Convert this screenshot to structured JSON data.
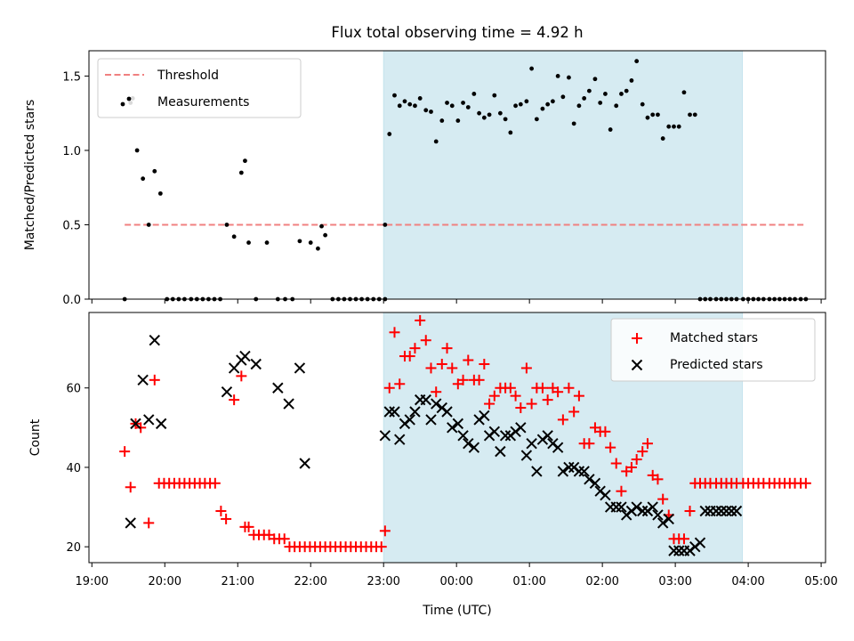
{
  "chart_data": {
    "type": "scatter",
    "title": "Flux total observing time = 4.92 h",
    "xlabel": "Time (UTC)",
    "x_unit": "hours since 19:00 UTC",
    "xlim": [
      -0.04,
      10.06
    ],
    "xticks": [
      0,
      1,
      2,
      3,
      4,
      5,
      6,
      7,
      8,
      9,
      10
    ],
    "xtick_labels": [
      "19:00",
      "20:00",
      "21:00",
      "22:00",
      "23:00",
      "00:00",
      "01:00",
      "02:00",
      "03:00",
      "04:00",
      "05:00"
    ],
    "shaded_region": {
      "x_start": 4.0,
      "x_end": 8.92,
      "color": "#add8e6"
    },
    "top_panel": {
      "ylabel": "Matched/Predicted stars",
      "ylim": [
        0,
        1.67
      ],
      "yticks": [
        0.0,
        0.5,
        1.0,
        1.5
      ],
      "ytick_labels": [
        "0.0",
        "0.5",
        "1.0",
        "1.5"
      ],
      "legend_position": "upper left",
      "threshold": {
        "name": "Threshold",
        "y": 0.5,
        "x_start": 0.45,
        "x_end": 9.8,
        "color": "#f08080"
      },
      "measurements": {
        "name": "Measurements",
        "color": "#000000",
        "x": [
          0.45,
          0.53,
          0.56,
          0.62,
          0.7,
          0.78,
          0.86,
          0.94,
          1.03,
          1.11,
          1.19,
          1.27,
          1.36,
          1.44,
          1.52,
          1.6,
          1.68,
          1.76,
          1.85,
          1.95,
          2.05,
          2.1,
          2.15,
          2.25,
          2.4,
          2.55,
          2.65,
          2.75,
          2.85,
          3.0,
          3.1,
          3.15,
          3.2,
          3.3,
          3.38,
          3.46,
          3.54,
          3.62,
          3.7,
          3.78,
          3.86,
          3.94,
          4.02,
          4.02,
          4.08,
          4.15,
          4.22,
          4.29,
          4.36,
          4.43,
          4.5,
          4.58,
          4.65,
          4.72,
          4.8,
          4.87,
          4.94,
          5.02,
          5.09,
          5.16,
          5.24,
          5.31,
          5.38,
          5.45,
          5.52,
          5.6,
          5.67,
          5.74,
          5.81,
          5.88,
          5.96,
          6.03,
          6.1,
          6.18,
          6.25,
          6.32,
          6.39,
          6.46,
          6.54,
          6.61,
          6.68,
          6.75,
          6.82,
          6.9,
          6.97,
          7.04,
          7.11,
          7.19,
          7.26,
          7.33,
          7.4,
          7.47,
          7.55,
          7.62,
          7.69,
          7.76,
          7.83,
          7.91,
          7.98,
          8.05,
          8.12,
          8.2,
          8.27,
          8.34,
          8.41,
          8.48,
          8.56,
          8.63,
          8.7,
          8.77,
          8.84,
          8.93,
          9.0,
          9.07,
          9.14,
          9.21,
          9.29,
          9.36,
          9.43,
          9.5,
          9.57,
          9.64,
          9.72,
          9.79
        ],
        "y": [
          0.0,
          1.32,
          1.35,
          1.0,
          0.81,
          0.5,
          0.86,
          0.71,
          0.0,
          0.0,
          0.0,
          0.0,
          0.0,
          0.0,
          0.0,
          0.0,
          0.0,
          0.0,
          0.5,
          0.42,
          0.85,
          0.93,
          0.38,
          0.0,
          0.38,
          0.0,
          0.0,
          0.0,
          0.39,
          0.38,
          0.34,
          0.49,
          0.43,
          0.0,
          0.0,
          0.0,
          0.0,
          0.0,
          0.0,
          0.0,
          0.0,
          0.0,
          0.0,
          0.5,
          1.11,
          1.37,
          1.3,
          1.33,
          1.31,
          1.3,
          1.35,
          1.27,
          1.26,
          1.06,
          1.2,
          1.32,
          1.3,
          1.2,
          1.32,
          1.29,
          1.38,
          1.25,
          1.22,
          1.24,
          1.37,
          1.25,
          1.21,
          1.12,
          1.3,
          1.31,
          1.33,
          1.55,
          1.21,
          1.28,
          1.31,
          1.33,
          1.5,
          1.36,
          1.49,
          1.18,
          1.3,
          1.35,
          1.4,
          1.48,
          1.32,
          1.38,
          1.14,
          1.3,
          1.38,
          1.4,
          1.47,
          1.6,
          1.31,
          1.22,
          1.24,
          1.24,
          1.08,
          1.16,
          1.16,
          1.16,
          1.39,
          1.24,
          1.24,
          0.0,
          0.0,
          0.0,
          0.0,
          0.0,
          0.0,
          0.0,
          0.0,
          0.0,
          0.0,
          0.0,
          0.0,
          0.0,
          0.0,
          0.0,
          0.0,
          0.0,
          0.0,
          0.0,
          0.0,
          0.0
        ]
      }
    },
    "bottom_panel": {
      "ylabel": "Count",
      "ylim": [
        16,
        79
      ],
      "yticks": [
        20,
        40,
        60
      ],
      "ytick_labels": [
        "20",
        "40",
        "60"
      ],
      "legend_position": "upper right",
      "series": [
        {
          "name": "Matched stars",
          "marker": "+",
          "color": "#ff0000",
          "x": [
            0.45,
            0.53,
            0.6,
            0.67,
            0.78,
            0.86,
            0.92,
            0.99,
            1.06,
            1.13,
            1.2,
            1.27,
            1.34,
            1.41,
            1.48,
            1.55,
            1.62,
            1.69,
            1.77,
            1.84,
            1.95,
            2.05,
            2.1,
            2.15,
            2.22,
            2.29,
            2.36,
            2.43,
            2.5,
            2.57,
            2.64,
            2.71,
            2.78,
            2.85,
            2.92,
            2.99,
            3.06,
            3.13,
            3.2,
            3.27,
            3.34,
            3.41,
            3.48,
            3.55,
            3.62,
            3.69,
            3.76,
            3.83,
            3.9,
            3.97,
            4.02,
            4.08,
            4.15,
            4.22,
            4.29,
            4.36,
            4.43,
            4.5,
            4.58,
            4.65,
            4.72,
            4.8,
            4.87,
            4.94,
            5.02,
            5.09,
            5.16,
            5.24,
            5.31,
            5.38,
            5.45,
            5.52,
            5.6,
            5.67,
            5.74,
            5.81,
            5.88,
            5.96,
            6.03,
            6.1,
            6.18,
            6.25,
            6.32,
            6.39,
            6.46,
            6.54,
            6.61,
            6.68,
            6.75,
            6.82,
            6.9,
            6.97,
            7.04,
            7.11,
            7.19,
            7.26,
            7.33,
            7.4,
            7.47,
            7.55,
            7.62,
            7.69,
            7.76,
            7.83,
            7.91,
            7.98,
            8.05,
            8.12,
            8.2,
            8.27,
            8.34,
            8.41,
            8.48,
            8.56,
            8.63,
            8.7,
            8.77,
            8.84,
            8.93,
            9.0,
            9.07,
            9.14,
            9.21,
            9.29,
            9.36,
            9.43,
            9.5,
            9.57,
            9.64,
            9.72,
            9.79
          ],
          "y": [
            44,
            35,
            51,
            50,
            26,
            62,
            36,
            36,
            36,
            36,
            36,
            36,
            36,
            36,
            36,
            36,
            36,
            36,
            29,
            27,
            57,
            63,
            25,
            25,
            23,
            23,
            23,
            23,
            22,
            22,
            22,
            20,
            20,
            20,
            20,
            20,
            20,
            20,
            20,
            20,
            20,
            20,
            20,
            20,
            20,
            20,
            20,
            20,
            20,
            20,
            24,
            60,
            74,
            61,
            68,
            68,
            70,
            77,
            72,
            65,
            59,
            66,
            70,
            65,
            61,
            62,
            67,
            62,
            62,
            66,
            56,
            58,
            60,
            60,
            60,
            58,
            55,
            65,
            56,
            60,
            60,
            57,
            60,
            59,
            52,
            60,
            54,
            58,
            46,
            46,
            50,
            49,
            49,
            45,
            41,
            34,
            39,
            40,
            42,
            44,
            46,
            38,
            37,
            32,
            28,
            22,
            22,
            22,
            29,
            36,
            36,
            36,
            36,
            36,
            36,
            36,
            36,
            36,
            36,
            36,
            36,
            36,
            36,
            36,
            36,
            36,
            36,
            36,
            36,
            36,
            36
          ]
        },
        {
          "name": "Predicted stars",
          "marker": "x",
          "color": "#000000",
          "x": [
            0.53,
            0.6,
            0.7,
            0.78,
            0.86,
            0.95,
            1.85,
            1.95,
            2.05,
            2.1,
            2.25,
            2.55,
            2.7,
            2.85,
            2.92,
            4.02,
            4.08,
            4.15,
            4.22,
            4.29,
            4.36,
            4.43,
            4.5,
            4.58,
            4.65,
            4.72,
            4.8,
            4.87,
            4.94,
            5.02,
            5.09,
            5.16,
            5.24,
            5.31,
            5.38,
            5.45,
            5.52,
            5.6,
            5.67,
            5.74,
            5.81,
            5.88,
            5.96,
            6.03,
            6.1,
            6.18,
            6.25,
            6.32,
            6.39,
            6.46,
            6.54,
            6.61,
            6.68,
            6.75,
            6.82,
            6.9,
            6.97,
            7.04,
            7.11,
            7.19,
            7.26,
            7.33,
            7.4,
            7.47,
            7.55,
            7.62,
            7.69,
            7.76,
            7.83,
            7.91,
            7.98,
            8.05,
            8.12,
            8.2,
            8.27,
            8.34,
            8.41,
            8.48,
            8.56,
            8.63,
            8.7,
            8.77,
            8.84
          ],
          "y": [
            26,
            51,
            62,
            52,
            72,
            51,
            59,
            65,
            67,
            68,
            66,
            60,
            56,
            65,
            41,
            48,
            54,
            54,
            47,
            51,
            52,
            54,
            57,
            57,
            52,
            56,
            55,
            54,
            50,
            51,
            48,
            46,
            45,
            52,
            53,
            48,
            49,
            44,
            48,
            48,
            49,
            50,
            43,
            46,
            39,
            47,
            48,
            46,
            45,
            39,
            40,
            40,
            39,
            39,
            37,
            36,
            34,
            33,
            30,
            30,
            30,
            28,
            29,
            30,
            29,
            29,
            30,
            28,
            26,
            27,
            19,
            19,
            19,
            19,
            20,
            21,
            29,
            29,
            29,
            29,
            29,
            29,
            29
          ]
        }
      ]
    }
  }
}
